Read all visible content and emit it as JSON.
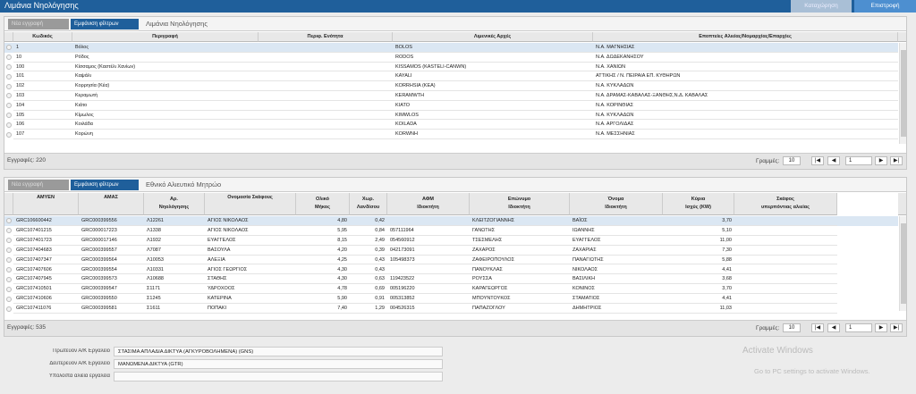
{
  "header": {
    "title": "Λιμάνια Νηολόγησης",
    "buttons": [
      "Καταχώρηση",
      "Επιστροφή"
    ]
  },
  "panels": [
    {
      "toolbar": {
        "new": "Νέα εγγραφή",
        "filters": "Εμφάνιση φίλτρων",
        "tab": "Λιμάνια Νηολόγησης"
      },
      "columns": [
        [
          "Κωδικός"
        ],
        [
          "Περιγραφή"
        ],
        [
          "Περιφ. Ενότητα"
        ],
        [
          "Λιμενικές Αρχές"
        ],
        [
          "Εποπτείες Αλιείας/Νομαρχίας/Επαρχίες"
        ]
      ],
      "rows": [
        [
          "1",
          "Βόλος",
          null,
          "BOLOS",
          "Ν.Α. ΜΑΓΝΗΣΙΑΣ"
        ],
        [
          "10",
          "Ρόδος",
          null,
          "RODOS",
          "Ν.Α. ΔΩΔΕΚΑΝΗΣΟΥ"
        ],
        [
          "100",
          "Κίσσαμος (Καστέλι Χανίων)",
          null,
          "KISSAMOS (KASTELI-CANWN)",
          "Ν.Α. ΧΑΝΙΩΝ"
        ],
        [
          "101",
          "Καψάλι",
          null,
          "KAYALI",
          "ΑΤΤΙΚΗΣ / Ν. ΠΕΙΡΑΙΑ ΕΠ. ΚΥΘΗΡΩΝ"
        ],
        [
          "102",
          "Κορρησία (Κέα)",
          null,
          "KORRHSIA (KEA)",
          "Ν.Α. ΚΥΚΛΑΔΩΝ"
        ],
        [
          "103",
          "Κεραμωτή",
          null,
          "KERAMWTH",
          "Ν.Α. ΔΡΑΜΑΣ-ΚΑΒΑΛΑΣ-ΞΑΝΘΗΣ,Ν.Δ. ΚΑΒΑΛΑΣ"
        ],
        [
          "104",
          "Κιάτο",
          null,
          "KIATO",
          "Ν.Α. ΚΟΡΙΝΘΙΑΣ"
        ],
        [
          "105",
          "Κίμωλος",
          null,
          "KIMWLOS",
          "Ν.Α. ΚΥΚΛΑΔΩΝ"
        ],
        [
          "106",
          "Κοιλάδα",
          null,
          "KOILADA",
          "Ν.Α. ΑΡΓΟΛΙΔΑΣ"
        ],
        [
          "107",
          "Κορώνη",
          null,
          "KORWNH",
          "Ν.Α. ΜΕΣΣΗΝΙΑΣ"
        ]
      ],
      "footer": {
        "count": "Εγγραφές: 220",
        "rows_label": "Γραμμές:",
        "rows_per_page": "10",
        "page": "1"
      }
    },
    {
      "toolbar": {
        "new": "Νέα εγγραφή",
        "filters": "Εμφάνιση φίλτρων",
        "tab": "Εθνικό Αλιευτικό Μητρώο"
      },
      "columns": [
        [
          "ΑΜΥΕΝ"
        ],
        [
          "ΑΜΑΣ"
        ],
        [
          "Αρ.",
          "Νηολόγησης"
        ],
        [
          "Ονομασία Σκάφους"
        ],
        [
          "Ολικό",
          "Μήκος"
        ],
        [
          "Χωρ.",
          "Λανδίσου"
        ],
        [
          "ΑΦΜ",
          "Ιδιοκτήτη"
        ],
        [
          "Επώνυμο",
          "Ιδιοκτήτη"
        ],
        [
          "Όνομα",
          "Ιδιοκτήτη"
        ],
        [
          "Κύρια",
          "Ισχύς (KW)"
        ],
        [
          "Σκάφος",
          "υπερπόντιας αλιείας"
        ]
      ],
      "rows": [
        [
          "GRC106600442",
          "GRC000399556",
          "Λ12261",
          "ΑΓΙΟΣ ΝΙΚΟΛΑΟΣ",
          "4,80",
          "0,42",
          null,
          "ΚΛΕΙΤΖΟΓΙΑΝΝΗΣ",
          "ΒΑΪΟΣ",
          "3,70",
          null
        ],
        [
          "GRC107401215",
          "GRC000017223",
          "Λ1338",
          "ΑΓΙΟΣ ΝΙΚΟΛΑΟΣ",
          "5,95",
          "0,84",
          "057111964",
          "ΓΑΝΩΤΗΣ",
          "ΙΩΑΝΝΗΣ",
          "5,10",
          null
        ],
        [
          "GRC107401723",
          "GRC000017146",
          "Λ1932",
          "ΕΥΑΓΓΕΛΟΣ",
          "8,15",
          "2,49",
          "054560912",
          "ΤΣΕΣΜΕΛΗΣ",
          "ΕΥΑΓΓΕΛΟΣ",
          "11,00",
          null
        ],
        [
          "GRC107404683",
          "GRC000399557",
          "Λ7087",
          "ΒΑΣΟΥΛΑ",
          "4,20",
          "0,39",
          "042173091",
          "ΖΑΧΑΡΟΣ",
          "ΖΑΧΑΡΙΑΣ",
          "7,30",
          null
        ],
        [
          "GRC107407347",
          "GRC000399564",
          "Λ10053",
          "ΑΛΕΞΙΑ",
          "4,25",
          "0,43",
          "105498373",
          "ΖΑΦΕΙΡΟΠΟΥΛΟΣ",
          "ΠΑΝΑΓΙΩΤΗΣ",
          "5,88",
          null
        ],
        [
          "GRC107407606",
          "GRC000399554",
          "Λ10331",
          "ΑΓΙΟΣ ΓΕΩΡΓΙΟΣ",
          "4,30",
          "0,43",
          null,
          "ΠΑΝΟΥΚΛΑΣ",
          "ΝΙΚΟΛΑΟΣ",
          "4,41",
          null
        ],
        [
          "GRC107407945",
          "GRC000399573",
          "Λ10688",
          "ΣΤΑΘΗΣ",
          "4,30",
          "0,63",
          "119423522",
          "ΡΟΥΣΣΑ",
          "ΒΑΣΙΛΙΚΗ",
          "3,68",
          null
        ],
        [
          "GRC107410501",
          "GRC000399547",
          "Σ1171",
          "ΥΔΡΟΧΟΟΣ",
          "4,78",
          "0,69",
          "005196220",
          "ΚΑΡΑΓΕΩΡΓΟΣ",
          "ΚΟΝΙΝΟΣ",
          "3,70",
          null
        ],
        [
          "GRC107410606",
          "GRC000399550",
          "Σ1245",
          "ΚΑΤΕΡΙΝΑ",
          "5,90",
          "0,91",
          "005313852",
          "ΜΠΟΥΝΤΟΥΚΟΣ",
          "ΣΤΑΜΑΤΙΟΣ",
          "4,41",
          null
        ],
        [
          "GRC107411076",
          "GRC000399581",
          "Σ1611",
          "ΠΟΠΑΚΙ",
          "7,40",
          "1,29",
          "004526315",
          "ΠΑΠΑΖΟΓΛΟΥ",
          "ΔΗΜΗΤΡΙΟΣ",
          "11,03",
          null
        ]
      ],
      "footer": {
        "count": "Εγγραφές: 535",
        "rows_label": "Γραμμές:",
        "rows_per_page": "10",
        "page": "1"
      }
    }
  ],
  "form": [
    {
      "label": "Πρωτεύον Α/Κ Εργαλείο",
      "value": "ΣΤΑΣΙΜΑ ΑΠΛΑΔΙΑ ΔΙΚΤΥΑ (ΑΓΚΥΡΟΒΟΛΗΜΕΝΑ) (GNS)"
    },
    {
      "label": "Δευτερεύον Α/Κ Εργαλείο",
      "value": "ΜΑΝΩΜΕΝΑ ΔΙΚΤΥΑ (GTR)"
    },
    {
      "label": "Υπόλοιπα αλιεία εργαλεία"
    }
  ],
  "watermark": {
    "title": "Activate Windows",
    "subtitle": "Go to PC settings to activate Windows."
  }
}
